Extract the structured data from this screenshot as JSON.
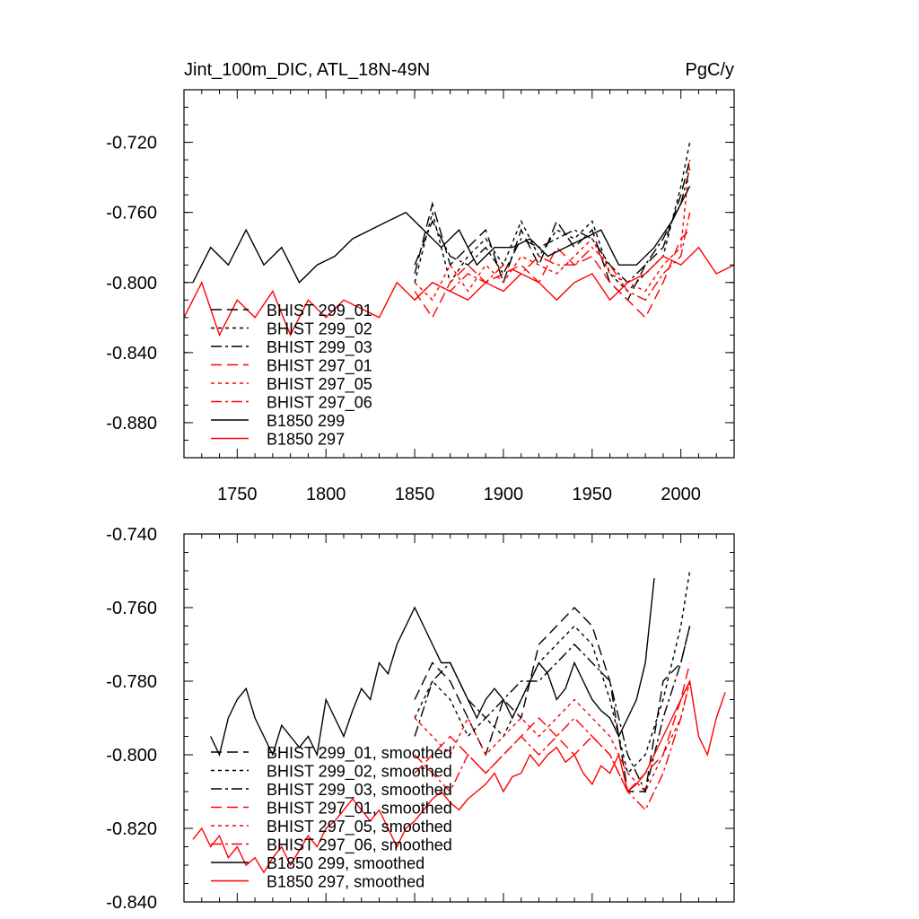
{
  "colors": {
    "black": "#000000",
    "red": "#ff0000"
  },
  "chart_data": [
    {
      "type": "line",
      "title": "Jint_100m_DIC, ATL_18N-49N",
      "units": "PgC/y",
      "xlim": [
        1720,
        2030
      ],
      "ylim": [
        -0.9,
        -0.69
      ],
      "xticks": [
        1750,
        1800,
        1850,
        1900,
        1950,
        2000
      ],
      "xtick_labels": [
        "1750",
        "1800",
        "1850",
        "1900",
        "1950",
        "2000"
      ],
      "yticks": [
        -0.72,
        -0.76,
        -0.8,
        -0.84,
        -0.88
      ],
      "ytick_labels": [
        "-0.720",
        "-0.760",
        "-0.800",
        "-0.840",
        "-0.880"
      ],
      "legend": {
        "placement": "lower-left"
      },
      "series": [
        {
          "name": "BHIST 299_01",
          "color": "#000000",
          "dash": "long",
          "x": [
            1850,
            1860,
            1870,
            1880,
            1890,
            1900,
            1910,
            1920,
            1930,
            1940,
            1950,
            1960,
            1970,
            1980,
            1990,
            2000,
            2005
          ],
          "values": [
            -0.795,
            -0.755,
            -0.79,
            -0.78,
            -0.77,
            -0.8,
            -0.77,
            -0.79,
            -0.765,
            -0.78,
            -0.77,
            -0.8,
            -0.81,
            -0.79,
            -0.78,
            -0.75,
            -0.73
          ]
        },
        {
          "name": "BHIST 299_02",
          "color": "#000000",
          "dash": "short",
          "x": [
            1850,
            1860,
            1870,
            1880,
            1890,
            1900,
            1910,
            1920,
            1930,
            1940,
            1950,
            1960,
            1970,
            1980,
            1990,
            2000,
            2005
          ],
          "values": [
            -0.8,
            -0.76,
            -0.8,
            -0.785,
            -0.775,
            -0.79,
            -0.765,
            -0.785,
            -0.77,
            -0.775,
            -0.765,
            -0.795,
            -0.805,
            -0.795,
            -0.785,
            -0.745,
            -0.72
          ]
        },
        {
          "name": "BHIST 299_03",
          "color": "#000000",
          "dash": "dashdot",
          "x": [
            1850,
            1860,
            1870,
            1880,
            1890,
            1900,
            1910,
            1920,
            1930,
            1940,
            1950,
            1960,
            1970,
            1980,
            1990,
            2000,
            2005
          ],
          "values": [
            -0.79,
            -0.765,
            -0.785,
            -0.79,
            -0.78,
            -0.795,
            -0.775,
            -0.78,
            -0.775,
            -0.77,
            -0.775,
            -0.79,
            -0.8,
            -0.79,
            -0.775,
            -0.755,
            -0.735
          ]
        },
        {
          "name": "BHIST 297_01",
          "color": "#ff0000",
          "dash": "long",
          "x": [
            1850,
            1860,
            1870,
            1880,
            1890,
            1900,
            1910,
            1920,
            1930,
            1940,
            1950,
            1960,
            1970,
            1980,
            1990,
            2000,
            2005
          ],
          "values": [
            -0.805,
            -0.82,
            -0.8,
            -0.79,
            -0.8,
            -0.795,
            -0.79,
            -0.8,
            -0.78,
            -0.79,
            -0.785,
            -0.8,
            -0.81,
            -0.82,
            -0.8,
            -0.775,
            -0.77
          ]
        },
        {
          "name": "BHIST 297_05",
          "color": "#ff0000",
          "dash": "short",
          "x": [
            1850,
            1860,
            1870,
            1880,
            1890,
            1900,
            1910,
            1920,
            1930,
            1940,
            1950,
            1960,
            1970,
            1980,
            1990,
            2000,
            2005
          ],
          "values": [
            -0.8,
            -0.81,
            -0.79,
            -0.805,
            -0.79,
            -0.8,
            -0.785,
            -0.79,
            -0.795,
            -0.785,
            -0.775,
            -0.795,
            -0.8,
            -0.805,
            -0.79,
            -0.78,
            -0.73
          ]
        },
        {
          "name": "BHIST 297_06",
          "color": "#ff0000",
          "dash": "dashdot",
          "x": [
            1850,
            1860,
            1870,
            1880,
            1890,
            1900,
            1910,
            1920,
            1930,
            1940,
            1950,
            1960,
            1970,
            1980,
            1990,
            2000,
            2005
          ],
          "values": [
            -0.81,
            -0.8,
            -0.805,
            -0.795,
            -0.8,
            -0.79,
            -0.795,
            -0.785,
            -0.79,
            -0.79,
            -0.78,
            -0.79,
            -0.805,
            -0.81,
            -0.795,
            -0.785,
            -0.76
          ]
        },
        {
          "name": "B1850 299",
          "color": "#000000",
          "dash": "solid",
          "x": [
            1725,
            1735,
            1745,
            1755,
            1765,
            1775,
            1785,
            1795,
            1805,
            1815,
            1825,
            1835,
            1845,
            1855,
            1865,
            1875,
            1885,
            1895,
            1905,
            1915,
            1925,
            1935,
            1945,
            1955,
            1965,
            1975,
            1985,
            1995,
            2005
          ],
          "values": [
            -0.8,
            -0.78,
            -0.79,
            -0.77,
            -0.79,
            -0.78,
            -0.8,
            -0.79,
            -0.785,
            -0.775,
            -0.77,
            -0.765,
            -0.76,
            -0.77,
            -0.78,
            -0.77,
            -0.79,
            -0.78,
            -0.78,
            -0.775,
            -0.785,
            -0.78,
            -0.775,
            -0.77,
            -0.79,
            -0.79,
            -0.78,
            -0.765,
            -0.745
          ]
        },
        {
          "name": "B1850 297",
          "color": "#ff0000",
          "dash": "solid",
          "x": [
            1720,
            1730,
            1740,
            1750,
            1760,
            1770,
            1780,
            1790,
            1800,
            1810,
            1820,
            1830,
            1840,
            1850,
            1860,
            1870,
            1880,
            1890,
            1900,
            1910,
            1920,
            1930,
            1940,
            1950,
            1960,
            1970,
            1980,
            1990,
            2000,
            2010,
            2020,
            2030
          ],
          "values": [
            -0.82,
            -0.8,
            -0.83,
            -0.81,
            -0.82,
            -0.805,
            -0.83,
            -0.81,
            -0.82,
            -0.81,
            -0.815,
            -0.82,
            -0.8,
            -0.81,
            -0.8,
            -0.805,
            -0.81,
            -0.8,
            -0.805,
            -0.795,
            -0.8,
            -0.81,
            -0.8,
            -0.795,
            -0.81,
            -0.8,
            -0.795,
            -0.785,
            -0.79,
            -0.78,
            -0.795,
            -0.79
          ]
        }
      ]
    },
    {
      "type": "line",
      "xlim": [
        1720,
        2030
      ],
      "ylim": [
        -0.84,
        -0.74
      ],
      "xticks": [
        1750,
        1800,
        1850,
        1900,
        1950,
        2000
      ],
      "yticks": [
        -0.74,
        -0.76,
        -0.78,
        -0.8,
        -0.82,
        -0.84
      ],
      "ytick_labels": [
        "-0.740",
        "-0.760",
        "-0.780",
        "-0.800",
        "-0.820",
        "-0.840"
      ],
      "legend": {
        "placement": "lower-left"
      },
      "series": [
        {
          "name": "BHIST 299_01, smoothed",
          "color": "#000000",
          "dash": "long",
          "x": [
            1850,
            1860,
            1870,
            1880,
            1890,
            1900,
            1910,
            1920,
            1930,
            1940,
            1950,
            1960,
            1970,
            1980,
            1990,
            2000,
            2005
          ],
          "values": [
            -0.785,
            -0.775,
            -0.78,
            -0.79,
            -0.8,
            -0.785,
            -0.79,
            -0.77,
            -0.765,
            -0.76,
            -0.765,
            -0.78,
            -0.81,
            -0.81,
            -0.78,
            -0.775,
            -0.765
          ]
        },
        {
          "name": "BHIST 299_02, smoothed",
          "color": "#000000",
          "dash": "short",
          "x": [
            1850,
            1860,
            1870,
            1880,
            1890,
            1900,
            1910,
            1920,
            1930,
            1940,
            1950,
            1960,
            1970,
            1980,
            1990,
            2000,
            2005
          ],
          "values": [
            -0.79,
            -0.78,
            -0.785,
            -0.795,
            -0.79,
            -0.795,
            -0.785,
            -0.775,
            -0.77,
            -0.765,
            -0.77,
            -0.785,
            -0.805,
            -0.8,
            -0.785,
            -0.765,
            -0.75
          ]
        },
        {
          "name": "BHIST 299_03, smoothed",
          "color": "#000000",
          "dash": "dashdot",
          "x": [
            1850,
            1860,
            1870,
            1880,
            1890,
            1900,
            1910,
            1920,
            1930,
            1940,
            1950,
            1960,
            1970,
            1980,
            1990,
            2000,
            2005
          ],
          "values": [
            -0.795,
            -0.78,
            -0.775,
            -0.785,
            -0.79,
            -0.785,
            -0.78,
            -0.78,
            -0.775,
            -0.77,
            -0.775,
            -0.78,
            -0.8,
            -0.81,
            -0.79,
            -0.775,
            -0.765
          ]
        },
        {
          "name": "BHIST 297_01, smoothed",
          "color": "#ff0000",
          "dash": "long",
          "x": [
            1850,
            1860,
            1870,
            1880,
            1890,
            1900,
            1910,
            1920,
            1930,
            1940,
            1950,
            1960,
            1970,
            1980,
            1990,
            2000,
            2005
          ],
          "values": [
            -0.805,
            -0.8,
            -0.795,
            -0.8,
            -0.805,
            -0.8,
            -0.795,
            -0.79,
            -0.795,
            -0.8,
            -0.795,
            -0.8,
            -0.81,
            -0.805,
            -0.8,
            -0.785,
            -0.775
          ]
        },
        {
          "name": "BHIST 297_05, smoothed",
          "color": "#ff0000",
          "dash": "short",
          "x": [
            1850,
            1860,
            1870,
            1880,
            1890,
            1900,
            1910,
            1920,
            1930,
            1940,
            1950,
            1960,
            1970,
            1980,
            1990,
            2000,
            2005
          ],
          "values": [
            -0.79,
            -0.795,
            -0.8,
            -0.79,
            -0.8,
            -0.795,
            -0.79,
            -0.795,
            -0.79,
            -0.785,
            -0.79,
            -0.795,
            -0.805,
            -0.81,
            -0.8,
            -0.79,
            -0.78
          ]
        },
        {
          "name": "BHIST 297_06, smoothed",
          "color": "#ff0000",
          "dash": "dashdot",
          "x": [
            1850,
            1860,
            1870,
            1880,
            1890,
            1900,
            1910,
            1920,
            1930,
            1940,
            1950,
            1960,
            1970,
            1980,
            1990,
            2000,
            2005
          ],
          "values": [
            -0.8,
            -0.805,
            -0.81,
            -0.8,
            -0.805,
            -0.8,
            -0.795,
            -0.8,
            -0.795,
            -0.79,
            -0.795,
            -0.8,
            -0.81,
            -0.815,
            -0.805,
            -0.79,
            -0.78
          ]
        },
        {
          "name": "B1850 299, smoothed",
          "color": "#000000",
          "dash": "solid",
          "x": [
            1735,
            1740,
            1745,
            1750,
            1755,
            1760,
            1765,
            1770,
            1775,
            1780,
            1785,
            1790,
            1795,
            1800,
            1805,
            1810,
            1815,
            1820,
            1825,
            1830,
            1835,
            1840,
            1845,
            1850,
            1855,
            1860,
            1865,
            1870,
            1875,
            1880,
            1885,
            1890,
            1895,
            1900,
            1905,
            1910,
            1915,
            1920,
            1925,
            1930,
            1935,
            1940,
            1945,
            1950,
            1955,
            1960,
            1965,
            1970,
            1975,
            1980,
            1985
          ],
          "values": [
            -0.795,
            -0.8,
            -0.79,
            -0.785,
            -0.782,
            -0.79,
            -0.795,
            -0.8,
            -0.792,
            -0.795,
            -0.798,
            -0.795,
            -0.8,
            -0.785,
            -0.79,
            -0.795,
            -0.788,
            -0.782,
            -0.785,
            -0.775,
            -0.778,
            -0.77,
            -0.765,
            -0.76,
            -0.765,
            -0.77,
            -0.775,
            -0.775,
            -0.78,
            -0.785,
            -0.79,
            -0.785,
            -0.782,
            -0.785,
            -0.79,
            -0.785,
            -0.78,
            -0.775,
            -0.778,
            -0.785,
            -0.782,
            -0.775,
            -0.78,
            -0.785,
            -0.788,
            -0.79,
            -0.795,
            -0.79,
            -0.785,
            -0.775,
            -0.752
          ]
        },
        {
          "name": "B1850 297, smoothed",
          "color": "#ff0000",
          "dash": "solid",
          "x": [
            1725,
            1730,
            1735,
            1740,
            1745,
            1750,
            1755,
            1760,
            1765,
            1770,
            1775,
            1780,
            1785,
            1790,
            1795,
            1800,
            1805,
            1810,
            1815,
            1820,
            1825,
            1830,
            1835,
            1840,
            1845,
            1850,
            1855,
            1860,
            1865,
            1870,
            1875,
            1880,
            1885,
            1890,
            1895,
            1900,
            1905,
            1910,
            1915,
            1920,
            1925,
            1930,
            1935,
            1940,
            1945,
            1950,
            1955,
            1960,
            1965,
            1970,
            1975,
            1980,
            1985,
            1990,
            1995,
            2000,
            2005,
            2010,
            2015,
            2020,
            2025
          ],
          "values": [
            -0.823,
            -0.82,
            -0.825,
            -0.822,
            -0.828,
            -0.825,
            -0.83,
            -0.828,
            -0.832,
            -0.828,
            -0.825,
            -0.83,
            -0.826,
            -0.822,
            -0.825,
            -0.82,
            -0.818,
            -0.815,
            -0.812,
            -0.815,
            -0.818,
            -0.815,
            -0.82,
            -0.825,
            -0.82,
            -0.818,
            -0.815,
            -0.812,
            -0.81,
            -0.813,
            -0.815,
            -0.812,
            -0.81,
            -0.808,
            -0.805,
            -0.81,
            -0.806,
            -0.805,
            -0.8,
            -0.803,
            -0.8,
            -0.798,
            -0.802,
            -0.8,
            -0.805,
            -0.808,
            -0.803,
            -0.805,
            -0.8,
            -0.81,
            -0.808,
            -0.805,
            -0.8,
            -0.795,
            -0.79,
            -0.785,
            -0.78,
            -0.795,
            -0.8,
            -0.79,
            -0.783
          ]
        }
      ]
    }
  ]
}
